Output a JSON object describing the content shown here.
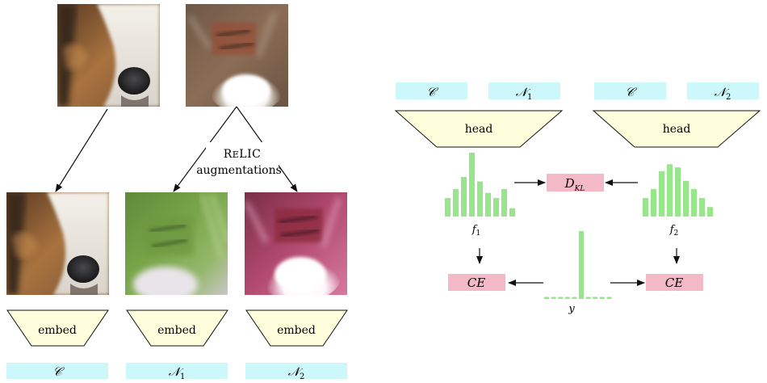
{
  "left_panel": {
    "images": {
      "collie_source": "collie dog face photo",
      "texture_source": "blurred wall and white fur photo",
      "collie_view": "collie dog face photo",
      "augmented_view_1": "green blurred augmented photo",
      "augmented_view_2": "magenta saturated augmented photo"
    },
    "augment_label_line1": "ReLIC",
    "augment_label_line2": "augmentations",
    "embed_labels": [
      "embed",
      "embed",
      "embed"
    ],
    "embed_outputs": [
      {
        "base": "C",
        "sub": ""
      },
      {
        "base": "N",
        "sub": "1"
      },
      {
        "base": "N",
        "sub": "2"
      }
    ]
  },
  "right_panel": {
    "head_inputs_left": [
      {
        "base": "C",
        "sub": ""
      },
      {
        "base": "N",
        "sub": "1"
      }
    ],
    "head_inputs_right": [
      {
        "base": "C",
        "sub": ""
      },
      {
        "base": "N",
        "sub": "2"
      }
    ],
    "head_labels": [
      "head",
      "head"
    ],
    "f1_label": {
      "base": "f",
      "sub": "1"
    },
    "f2_label": {
      "base": "f",
      "sub": "2"
    },
    "kl_label": {
      "base": "D",
      "sub": "KL"
    },
    "ce_left": "CE",
    "ce_right": "CE",
    "y_label": "y"
  },
  "colors": {
    "cyan_box": "#ccf8fb",
    "trapezoid_fill": "#fefedd",
    "pink_box": "#f3b9c6",
    "bars": "#98e68b",
    "arrow": "#111111"
  },
  "distributions": {
    "f1": [
      0.29,
      0.43,
      0.62,
      1.0,
      0.55,
      0.37,
      0.29,
      0.43,
      0.13
    ],
    "f2": [
      0.29,
      0.43,
      0.71,
      0.82,
      0.77,
      0.56,
      0.43,
      0.29,
      0.15
    ],
    "y": [
      0.03,
      0.03,
      0.03,
      0.03,
      0.03,
      1.0,
      0.03,
      0.03,
      0.03,
      0.03
    ]
  }
}
